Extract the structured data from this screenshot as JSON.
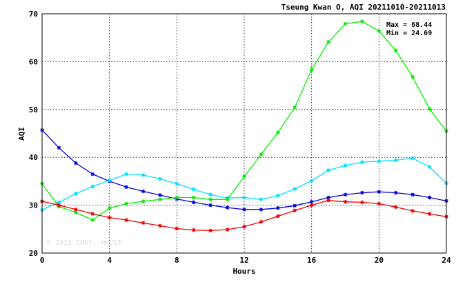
{
  "chart_data": {
    "type": "line",
    "title": "Tseung Kwan O, AQI 20211010-20211013",
    "xlabel": "Hours",
    "ylabel": "AQI",
    "xlim": [
      0,
      24
    ],
    "ylim": [
      20,
      70
    ],
    "xticks": [
      0,
      4,
      8,
      12,
      16,
      20,
      24
    ],
    "yticks": [
      20,
      30,
      40,
      50,
      60,
      70
    ],
    "grid": true,
    "stats": {
      "max": "Max = 68.44",
      "min": "Min = 24.69"
    },
    "watermark": "© 2025  ENVF, HKUST",
    "x": [
      0,
      1,
      2,
      3,
      4,
      5,
      6,
      7,
      8,
      9,
      10,
      11,
      12,
      13,
      14,
      15,
      16,
      17,
      18,
      19,
      20,
      21,
      22,
      23,
      24
    ],
    "series": [
      {
        "color": "#0000dd",
        "values": [
          45.7,
          42.0,
          38.8,
          36.5,
          35.0,
          33.8,
          32.9,
          32.1,
          31.3,
          30.6,
          30.0,
          29.5,
          29.1,
          29.1,
          29.4,
          29.9,
          30.7,
          31.6,
          32.2,
          32.6,
          32.8,
          32.6,
          32.2,
          31.6,
          30.9
        ]
      },
      {
        "color": "#00e0ff",
        "values": [
          29.0,
          30.6,
          32.4,
          33.9,
          35.2,
          36.5,
          36.3,
          35.5,
          34.5,
          33.3,
          32.2,
          31.5,
          31.6,
          31.2,
          32.0,
          33.4,
          35.1,
          37.3,
          38.3,
          39.0,
          39.2,
          39.4,
          39.8,
          38.0,
          34.6
        ]
      },
      {
        "color": "#00ee00",
        "values": [
          34.5,
          29.7,
          28.5,
          26.9,
          29.4,
          30.3,
          30.8,
          31.2,
          31.6,
          31.6,
          31.2,
          31.2,
          36.0,
          40.6,
          45.2,
          50.4,
          58.3,
          64.1,
          67.9,
          68.4,
          66.4,
          62.3,
          56.8,
          50.1,
          45.5
        ]
      },
      {
        "color": "#ee0000",
        "values": [
          30.8,
          30.0,
          29.1,
          28.2,
          27.4,
          26.9,
          26.3,
          25.7,
          25.1,
          24.8,
          24.7,
          24.9,
          25.5,
          26.5,
          27.7,
          28.9,
          30.0,
          31.0,
          30.7,
          30.6,
          30.3,
          29.6,
          28.8,
          28.2,
          27.6
        ]
      }
    ]
  }
}
